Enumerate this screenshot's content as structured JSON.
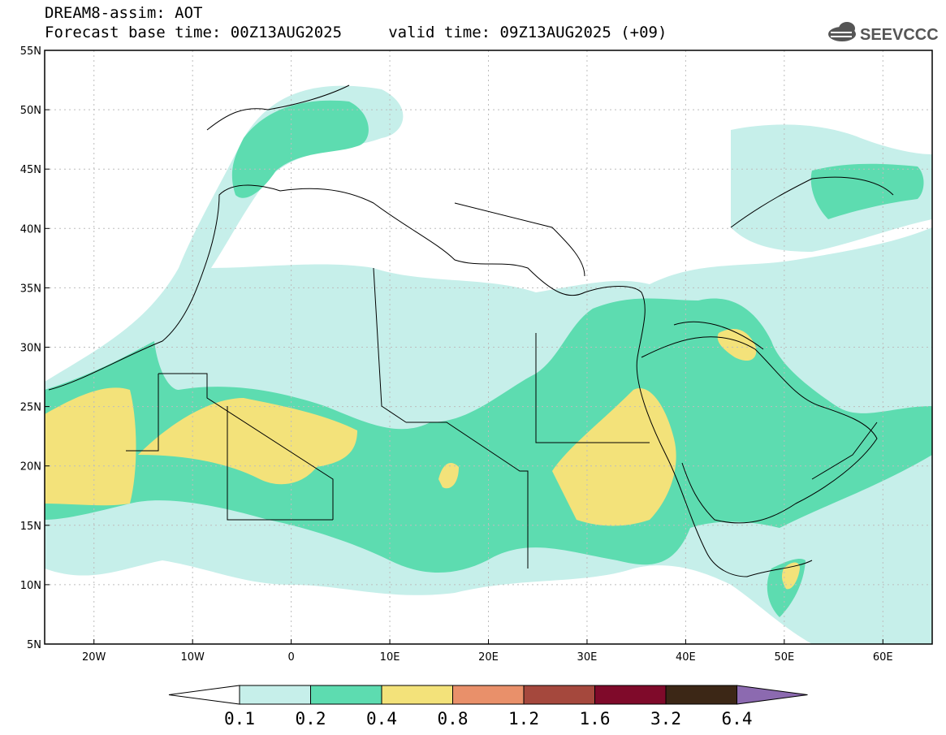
{
  "header": {
    "title_line1": "DREAM8-assim: AOT",
    "title_line2": "Forecast base time: 00Z13AUG2025     valid time: 09Z13AUG2025 (+09)",
    "logo_text": "SEEVCCC"
  },
  "map": {
    "lon_range": [
      -25,
      65
    ],
    "lat_range": [
      5,
      55
    ],
    "lon_ticks": [
      {
        "value": -20,
        "label": "20W"
      },
      {
        "value": -10,
        "label": "10W"
      },
      {
        "value": 0,
        "label": "0"
      },
      {
        "value": 10,
        "label": "10E"
      },
      {
        "value": 20,
        "label": "20E"
      },
      {
        "value": 30,
        "label": "30E"
      },
      {
        "value": 40,
        "label": "40E"
      },
      {
        "value": 50,
        "label": "50E"
      },
      {
        "value": 60,
        "label": "60E"
      }
    ],
    "lat_ticks": [
      {
        "value": 5,
        "label": "5N"
      },
      {
        "value": 10,
        "label": "10N"
      },
      {
        "value": 15,
        "label": "15N"
      },
      {
        "value": 20,
        "label": "20N"
      },
      {
        "value": 25,
        "label": "25N"
      },
      {
        "value": 30,
        "label": "30N"
      },
      {
        "value": 35,
        "label": "35N"
      },
      {
        "value": 40,
        "label": "40N"
      },
      {
        "value": 45,
        "label": "45N"
      },
      {
        "value": 50,
        "label": "50N"
      },
      {
        "value": 55,
        "label": "55N"
      }
    ]
  },
  "colorbar": {
    "labels": [
      "0.1",
      "0.2",
      "0.4",
      "0.8",
      "1.2",
      "1.6",
      "3.2",
      "6.4"
    ],
    "colors": [
      "#ffffff",
      "#c6efea",
      "#5ddcb0",
      "#f3e27a",
      "#e9906a",
      "#a5483d",
      "#7f0a2a",
      "#3c2716",
      "#8c6ab0"
    ]
  }
}
